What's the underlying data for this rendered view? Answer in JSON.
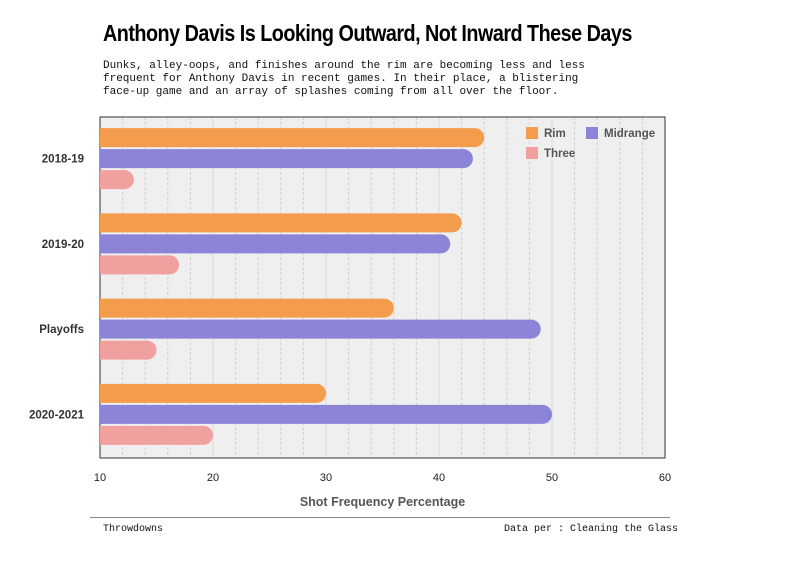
{
  "title": "Anthony Davis Is Looking Outward, Not Inward These Days",
  "subtitle_lines": [
    "Dunks, alley-oops, and finishes around the rim are becoming less and less",
    "frequent for Anthony Davis in recent games. In their place, a blistering",
    "face-up game and an array of splashes coming from all over the floor."
  ],
  "footer": {
    "source_left": "Throwdowns",
    "source_right": "Data per : Cleaning the Glass"
  },
  "chart_data": {
    "type": "bar",
    "orientation": "horizontal",
    "categories": [
      "2018-19",
      "2019-20",
      "Playoffs",
      "2020-2021"
    ],
    "series": [
      {
        "name": "Rim",
        "values": [
          44,
          42,
          36,
          30
        ],
        "color": "#f29c4c"
      },
      {
        "name": "Midrange",
        "values": [
          43,
          41,
          49,
          50
        ],
        "color": "#8b84d7"
      },
      {
        "name": "Three",
        "values": [
          13,
          17,
          15,
          20
        ],
        "color": "#f0a19f"
      }
    ],
    "xlabel": "Shot Frequency Percentage",
    "ylabel": "",
    "xlim": [
      10,
      60
    ],
    "xticks": [
      10,
      20,
      30,
      40,
      50,
      60
    ],
    "grid": true,
    "legend": "top-right",
    "plot_background": "#efefef"
  }
}
